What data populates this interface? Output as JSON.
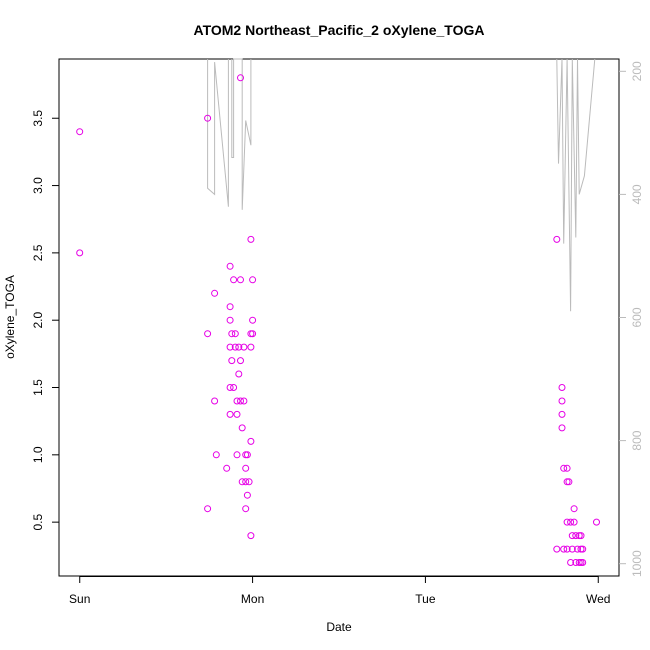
{
  "chart_data": {
    "type": "scatter",
    "title": "ATOM2 Northeast_Pacific_2 oXylene_TOGA",
    "xlabel": "Date",
    "ylabel": "oXylene_TOGA",
    "x_unit": "days since Sun 00:00",
    "x_ticks": [
      {
        "value": 0,
        "label": "Sun"
      },
      {
        "value": 1,
        "label": "Mon"
      },
      {
        "value": 2,
        "label": "Tue"
      },
      {
        "value": 3,
        "label": "Wed"
      }
    ],
    "xlim": [
      -0.12,
      3.12
    ],
    "y_ticks": [
      0.5,
      1.0,
      1.5,
      2.0,
      2.5,
      3.0,
      3.5
    ],
    "y_tick_labels": [
      "0.5",
      "1.0",
      "1.5",
      "2.0",
      "2.5",
      "3.0",
      "3.5"
    ],
    "ylim": [
      0.1,
      3.94
    ],
    "y2_ticks": [
      200,
      400,
      600,
      800,
      1000
    ],
    "y2_tick_labels": [
      "200",
      "400",
      "600",
      "800",
      "1000"
    ],
    "y2lim": [
      1020,
      180
    ],
    "grid": false,
    "series": [
      {
        "color": "#e600e6",
        "marker": "open-circle",
        "points": [
          [
            0.0,
            3.4
          ],
          [
            0.0,
            2.5
          ],
          [
            0.74,
            3.5
          ],
          [
            0.74,
            1.9
          ],
          [
            0.74,
            0.6
          ],
          [
            0.78,
            2.2
          ],
          [
            0.79,
            1.0
          ],
          [
            0.78,
            1.4
          ],
          [
            0.85,
            0.9
          ],
          [
            0.87,
            2.4
          ],
          [
            0.87,
            2.1
          ],
          [
            0.87,
            2.0
          ],
          [
            0.87,
            1.8
          ],
          [
            0.87,
            1.5
          ],
          [
            0.87,
            1.3
          ],
          [
            0.88,
            1.9
          ],
          [
            0.88,
            1.7
          ],
          [
            0.89,
            2.3
          ],
          [
            0.89,
            1.5
          ],
          [
            0.9,
            1.9
          ],
          [
            0.9,
            1.8
          ],
          [
            0.91,
            1.0
          ],
          [
            0.91,
            1.3
          ],
          [
            0.91,
            1.4
          ],
          [
            0.92,
            1.8
          ],
          [
            0.92,
            1.6
          ],
          [
            0.93,
            3.8
          ],
          [
            0.93,
            2.3
          ],
          [
            0.93,
            1.7
          ],
          [
            0.93,
            1.4
          ],
          [
            0.94,
            1.2
          ],
          [
            0.94,
            0.8
          ],
          [
            0.95,
            1.8
          ],
          [
            0.95,
            1.4
          ],
          [
            0.96,
            1.0
          ],
          [
            0.96,
            0.9
          ],
          [
            0.96,
            0.8
          ],
          [
            0.96,
            0.6
          ],
          [
            0.97,
            0.7
          ],
          [
            0.97,
            1.0
          ],
          [
            0.98,
            0.8
          ],
          [
            0.99,
            2.6
          ],
          [
            0.99,
            1.9
          ],
          [
            0.99,
            1.8
          ],
          [
            0.99,
            1.1
          ],
          [
            0.99,
            0.4
          ],
          [
            1.0,
            2.3
          ],
          [
            1.0,
            2.0
          ],
          [
            1.0,
            1.9
          ],
          [
            2.76,
            2.6
          ],
          [
            2.76,
            0.3
          ],
          [
            2.79,
            1.5
          ],
          [
            2.79,
            1.4
          ],
          [
            2.79,
            1.3
          ],
          [
            2.79,
            1.2
          ],
          [
            2.8,
            0.9
          ],
          [
            2.8,
            0.3
          ],
          [
            2.82,
            0.9
          ],
          [
            2.82,
            0.8
          ],
          [
            2.82,
            0.5
          ],
          [
            2.82,
            0.3
          ],
          [
            2.83,
            0.8
          ],
          [
            2.84,
            0.2
          ],
          [
            2.84,
            0.5
          ],
          [
            2.85,
            0.4
          ],
          [
            2.85,
            0.3
          ],
          [
            2.86,
            0.6
          ],
          [
            2.86,
            0.5
          ],
          [
            2.87,
            0.4
          ],
          [
            2.87,
            0.2
          ],
          [
            2.88,
            0.3
          ],
          [
            2.89,
            0.4
          ],
          [
            2.89,
            0.2
          ],
          [
            2.9,
            0.4
          ],
          [
            2.9,
            0.3
          ],
          [
            2.9,
            0.2
          ],
          [
            2.91,
            0.3
          ],
          [
            2.91,
            0.2
          ],
          [
            2.99,
            0.5
          ]
        ]
      },
      {
        "axis": "right",
        "color": "#bbbbbb",
        "type": "line",
        "segments": [
          [
            [
              0.74,
              180
            ],
            [
              0.74,
              390
            ],
            [
              0.78,
              400
            ],
            [
              0.78,
              185
            ],
            [
              0.86,
              420
            ],
            [
              0.86,
              180
            ]
          ],
          [
            [
              0.88,
              180
            ],
            [
              0.88,
              340
            ],
            [
              0.89,
              340
            ],
            [
              0.89,
              180
            ],
            [
              0.94,
              180
            ],
            [
              0.94,
              425
            ],
            [
              0.96,
              280
            ],
            [
              0.99,
              320
            ],
            [
              0.99,
              180
            ]
          ],
          [
            [
              2.76,
              180
            ],
            [
              2.76,
              180
            ]
          ],
          [
            [
              2.76,
              180
            ],
            [
              2.77,
              350
            ],
            [
              2.79,
              180
            ],
            [
              2.8,
              480
            ],
            [
              2.82,
              180
            ],
            [
              2.84,
              590
            ],
            [
              2.85,
              180
            ],
            [
              2.87,
              470
            ],
            [
              2.88,
              180
            ],
            [
              2.89,
              400
            ],
            [
              2.92,
              370
            ],
            [
              2.98,
              180
            ]
          ]
        ]
      }
    ]
  }
}
